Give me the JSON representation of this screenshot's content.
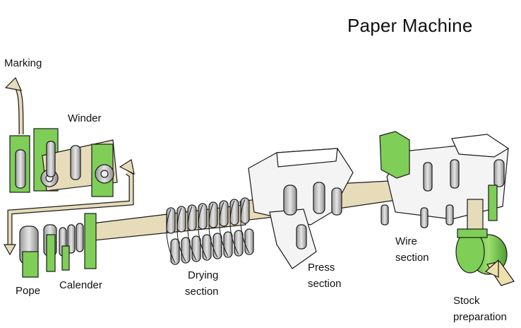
{
  "title": "Paper Machine",
  "labels": {
    "marking": "Marking",
    "winder": "Winder",
    "pope": "Pope",
    "calender": "Calender",
    "drying_line1": "Drying",
    "drying_line2": "section",
    "press_line1": "Press",
    "press_line2": "section",
    "wire_line1": "Wire",
    "wire_line2": "section",
    "stock_line1": "Stock",
    "stock_line2": "preparation"
  },
  "colors": {
    "paper_web": "#e6dcba",
    "machine_green": "#7fce58",
    "roll_grey": "#c9c9c9",
    "frame_white": "#f4f4f4",
    "outline": "#1a1a1a",
    "arrow_fill": "#eee0ad"
  }
}
